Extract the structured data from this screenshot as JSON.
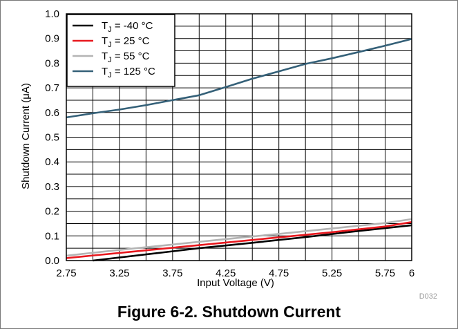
{
  "figure_title": "Figure 6-2. Shutdown Current",
  "chart_code": "D032",
  "chart_data": {
    "type": "line",
    "xlabel": "Input Voltage (V)",
    "ylabel": "Shutdown Current (μA)",
    "xlim": [
      2.75,
      6
    ],
    "ylim": [
      0,
      1.0
    ],
    "x_ticks": [
      "2.75",
      "3.25",
      "3.75",
      "4.25",
      "4.75",
      "5.25",
      "5.75",
      "6"
    ],
    "y_ticks": [
      "0.0",
      "0.1",
      "0.2",
      "0.3",
      "0.4",
      "0.5",
      "0.6",
      "0.7",
      "0.8",
      "0.9",
      "1.0"
    ],
    "grid": true,
    "legend_position": "top-left",
    "series": [
      {
        "name": "T_J = -40 °C",
        "label_main": "T",
        "label_sub": "J",
        "label_rest": " = -40 °C",
        "color": "#000000",
        "x": [
          3.0,
          3.5,
          4.0,
          4.5,
          5.0,
          5.5,
          6.0
        ],
        "y": [
          0.0,
          0.025,
          0.05,
          0.072,
          0.095,
          0.12,
          0.143
        ]
      },
      {
        "name": "T_J = 25 °C",
        "label_main": "T",
        "label_sub": "J",
        "label_rest": " = 25 °C",
        "color": "#e8181e",
        "x": [
          2.75,
          3.25,
          3.75,
          4.25,
          4.75,
          5.25,
          5.75,
          6.0
        ],
        "y": [
          0.01,
          0.031,
          0.052,
          0.073,
          0.094,
          0.115,
          0.138,
          0.156
        ]
      },
      {
        "name": "T_J = 55 °C",
        "label_main": "T",
        "label_sub": "J",
        "label_rest": " = 55 °C",
        "color": "#b4b4b4",
        "x": [
          2.75,
          3.25,
          3.75,
          4.25,
          4.75,
          5.25,
          5.75,
          6.0
        ],
        "y": [
          0.02,
          0.043,
          0.065,
          0.087,
          0.108,
          0.13,
          0.152,
          0.168
        ]
      },
      {
        "name": "T_J = 125 °C",
        "label_main": "T",
        "label_sub": "J",
        "label_rest": " = 125 °C",
        "color": "#346078",
        "x": [
          2.75,
          3.0,
          3.25,
          3.5,
          3.75,
          4.0,
          4.25,
          4.5,
          4.75,
          5.0,
          5.25,
          5.5,
          5.75,
          6.0
        ],
        "y": [
          0.58,
          0.597,
          0.612,
          0.63,
          0.65,
          0.67,
          0.703,
          0.737,
          0.767,
          0.797,
          0.82,
          0.845,
          0.871,
          0.898
        ]
      }
    ]
  }
}
